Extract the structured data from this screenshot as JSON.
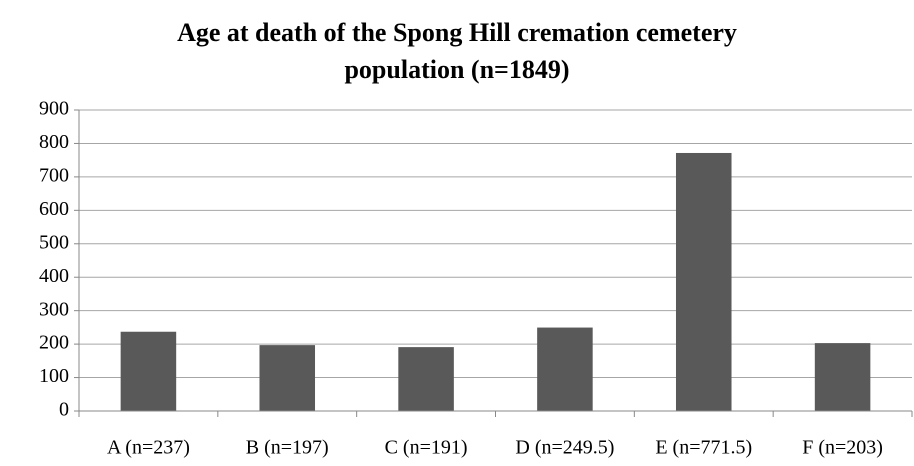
{
  "chart_data": {
    "type": "bar",
    "title": "Age at death of the Spong Hill cremation cemetery population (n=1849)",
    "categories": [
      "A (n=237)",
      "B (n=197)",
      "C (n=191)",
      "D (n=249.5)",
      "E (n=771.5)",
      "F (n=203)"
    ],
    "values": [
      237,
      197,
      191,
      249.5,
      771.5,
      203
    ],
    "color": "#595959",
    "ylim": [
      0,
      900
    ],
    "yticks": [
      0,
      100,
      200,
      300,
      400,
      500,
      600,
      700,
      800,
      900
    ],
    "grid": true
  }
}
